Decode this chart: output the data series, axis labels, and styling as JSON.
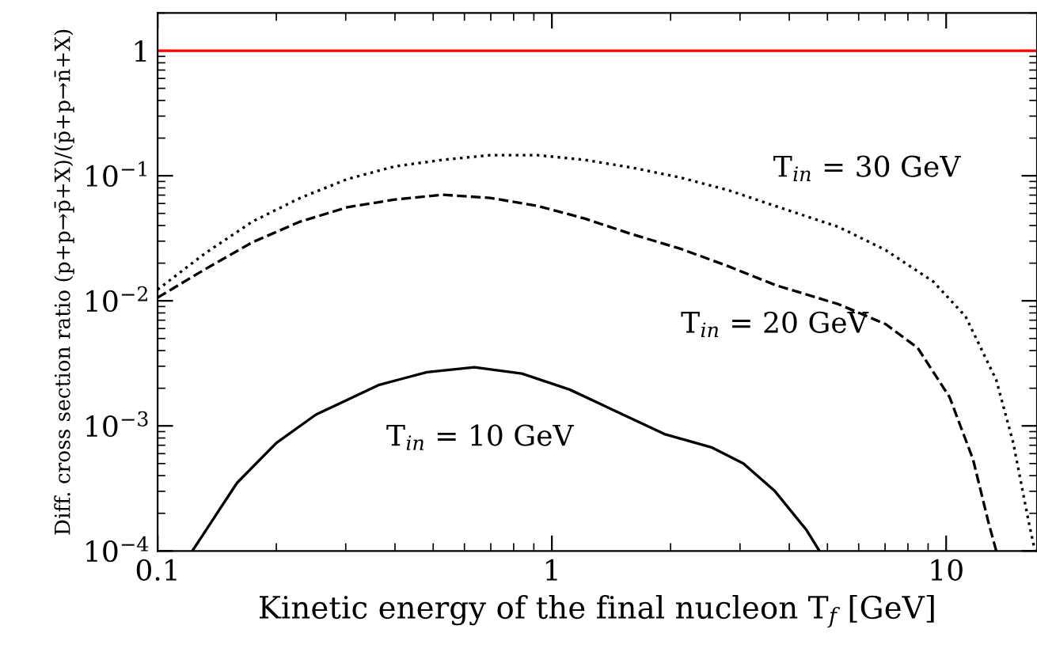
{
  "chart_data": {
    "type": "line",
    "xlabel": "Kinetic energy of the final nucleon T$_{f}$ [GeV]",
    "ylabel": "Diff. cross section ratio (p+p→p̄+X)/(p̄+p→n̄+X)",
    "log": "xy",
    "xlim": [
      0.1,
      17
    ],
    "ylim": [
      0.0001,
      2
    ],
    "xticks": [
      0.1,
      1,
      10
    ],
    "yticks": [
      {
        "value": 0.0001,
        "label": "10$^{−4}$"
      },
      {
        "value": 0.001,
        "label": "10$^{−3}$"
      },
      {
        "value": 0.01,
        "label": "10$^{−2}$"
      },
      {
        "value": 0.1,
        "label": "10$^{−1}$"
      },
      1
    ],
    "grid": false,
    "legend": false,
    "ref_lines": [
      {
        "axis": "y",
        "value": 1,
        "label": null,
        "color": "#ff0000"
      }
    ],
    "series": [
      {
        "color": "#000000",
        "line_style": "solid",
        "x": [
          0.1225,
          0.159,
          0.2,
          0.252,
          0.365,
          0.482,
          0.636,
          0.839,
          1.11,
          1.46,
          1.93,
          2.55,
          3.06,
          3.68,
          4.43,
          4.77
        ],
        "values": [
          0.0001,
          0.00035,
          0.00073,
          0.00123,
          0.00213,
          0.00269,
          0.00294,
          0.00262,
          0.00195,
          0.0013,
          0.00086,
          0.00067,
          0.0005,
          0.0003,
          0.000146,
          0.0001
        ]
      },
      {
        "color": "#000000",
        "line_style": "dashed",
        "x": [
          0.1,
          0.132,
          0.174,
          0.23,
          0.303,
          0.4,
          0.528,
          0.697,
          0.92,
          1.21,
          1.6,
          2.11,
          2.79,
          3.68,
          5.33,
          7.03,
          8.47,
          10.2,
          11.7,
          12.8,
          13.4
        ],
        "values": [
          0.0106,
          0.0179,
          0.0294,
          0.043,
          0.056,
          0.0646,
          0.0705,
          0.0665,
          0.0574,
          0.0455,
          0.034,
          0.0262,
          0.019,
          0.0134,
          0.0094,
          0.0065,
          0.0042,
          0.0017,
          0.00054,
          0.00017,
          0.0001
        ]
      },
      {
        "color": "#000000",
        "line_style": "dotted",
        "x": [
          0.1,
          0.132,
          0.174,
          0.23,
          0.303,
          0.4,
          0.528,
          0.697,
          0.92,
          1.21,
          1.6,
          2.11,
          2.79,
          3.68,
          5.33,
          7.03,
          9.29,
          11.2,
          13.4,
          14.8,
          16.2,
          16.8
        ],
        "values": [
          0.0123,
          0.024,
          0.043,
          0.0665,
          0.094,
          0.119,
          0.134,
          0.146,
          0.146,
          0.134,
          0.116,
          0.097,
          0.077,
          0.0574,
          0.039,
          0.0254,
          0.0142,
          0.0075,
          0.00233,
          0.00073,
          0.00017,
          0.0001
        ]
      }
    ],
    "annotations": [
      "T$_{in}$ = 30 GeV",
      "T$_{in}$ = 20 GeV",
      "T$_{in}$ = 10 GeV"
    ]
  }
}
